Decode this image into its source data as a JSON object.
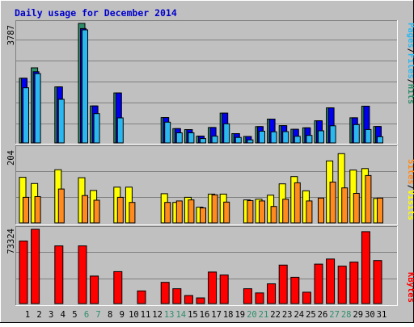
{
  "chart_data": {
    "type": "bar",
    "title": "Daily usage for December 2014",
    "days": [
      "1",
      "2",
      "3",
      "4",
      "5",
      "6",
      "7",
      "8",
      "9",
      "10",
      "11",
      "12",
      "13",
      "14",
      "15",
      "16",
      "17",
      "18",
      "19",
      "20",
      "21",
      "22",
      "23",
      "24",
      "25",
      "26",
      "27",
      "28",
      "29",
      "30",
      "31"
    ],
    "weekend_days": [
      "6",
      "7",
      "13",
      "14",
      "20",
      "21",
      "27",
      "28"
    ],
    "hits_files_panel": {
      "ylabel_parts": [
        "Pages",
        "/",
        "Files",
        "/",
        "Hits"
      ],
      "max_label": "3787",
      "ymax": 3787,
      "series": [
        {
          "name": "Hits",
          "values": [
            2049,
            2379,
            0,
            1776,
            0,
            3787,
            1171,
            0,
            1584,
            0,
            0,
            0,
            804,
            454,
            422,
            215,
            488,
            944,
            295,
            205,
            518,
            755,
            548,
            433,
            478,
            701,
            1110,
            0,
            795,
            1165,
            520
          ]
        },
        {
          "name": "Files",
          "values": [
            2049,
            2257,
            0,
            1776,
            0,
            3623,
            1171,
            0,
            1584,
            0,
            0,
            0,
            804,
            454,
            422,
            215,
            488,
            944,
            295,
            205,
            518,
            755,
            548,
            433,
            478,
            701,
            1110,
            0,
            795,
            1165,
            520
          ]
        },
        {
          "name": "Pages",
          "values": [
            1747,
            2196,
            0,
            1381,
            0,
            3582,
            930,
            0,
            793,
            0,
            0,
            0,
            657,
            321,
            321,
            137,
            216,
            606,
            175,
            97,
            371,
            353,
            357,
            211,
            239,
            383,
            542,
            0,
            580,
            426,
            196
          ]
        }
      ]
    },
    "visits_sites_panel": {
      "ylabel_parts": [
        "Sites",
        "/",
        "Visits"
      ],
      "max_label": "204",
      "ymax": 204,
      "series": [
        {
          "name": "Visits",
          "values": [
            125,
            108,
            0,
            146,
            0,
            124,
            89,
            0,
            98,
            98,
            0,
            0,
            80,
            56,
            70,
            43,
            79,
            79,
            0,
            63,
            65,
            76,
            107,
            127,
            88,
            0,
            170,
            190,
            145,
            149,
            67
          ]
        },
        {
          "name": "Sites",
          "values": [
            70,
            72,
            0,
            93,
            0,
            75,
            62,
            0,
            70,
            56,
            0,
            0,
            56,
            60,
            63,
            41,
            77,
            57,
            0,
            61,
            60,
            45,
            65,
            110,
            60,
            68,
            112,
            96,
            81,
            130,
            68
          ]
        }
      ]
    },
    "kbytes_panel": {
      "ylabel_parts": [
        "KBytes"
      ],
      "max_label": "73324",
      "ymax": 73324,
      "series": [
        {
          "name": "KBytes",
          "values": [
            61800,
            73324,
            0,
            57000,
            0,
            57000,
            27200,
            0,
            31600,
            0,
            12500,
            0,
            21000,
            14700,
            8000,
            5600,
            31200,
            28200,
            0,
            14700,
            10500,
            19500,
            38000,
            26000,
            11200,
            39000,
            44000,
            37000,
            41000,
            71000,
            42500
          ]
        }
      ]
    },
    "colors": {
      "hits": "#2f8e6a",
      "files": "#0000ee",
      "pages": "#2bb8f0",
      "visits": "#ffff00",
      "sites": "#ff8a1d",
      "kbytes": "#ff0000",
      "title": "#0000cc",
      "weekend_label": "#2f8e6a"
    }
  }
}
